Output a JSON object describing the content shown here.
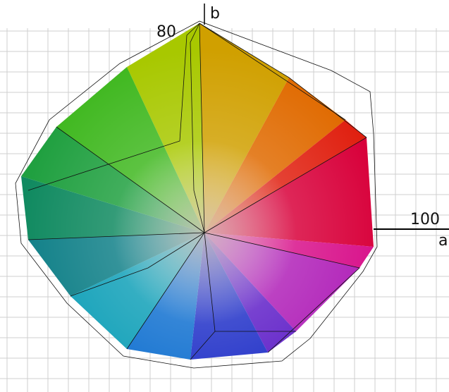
{
  "axes": {
    "b_label": "b",
    "b_value": "80",
    "a_label": "a",
    "a_value": "100"
  }
}
